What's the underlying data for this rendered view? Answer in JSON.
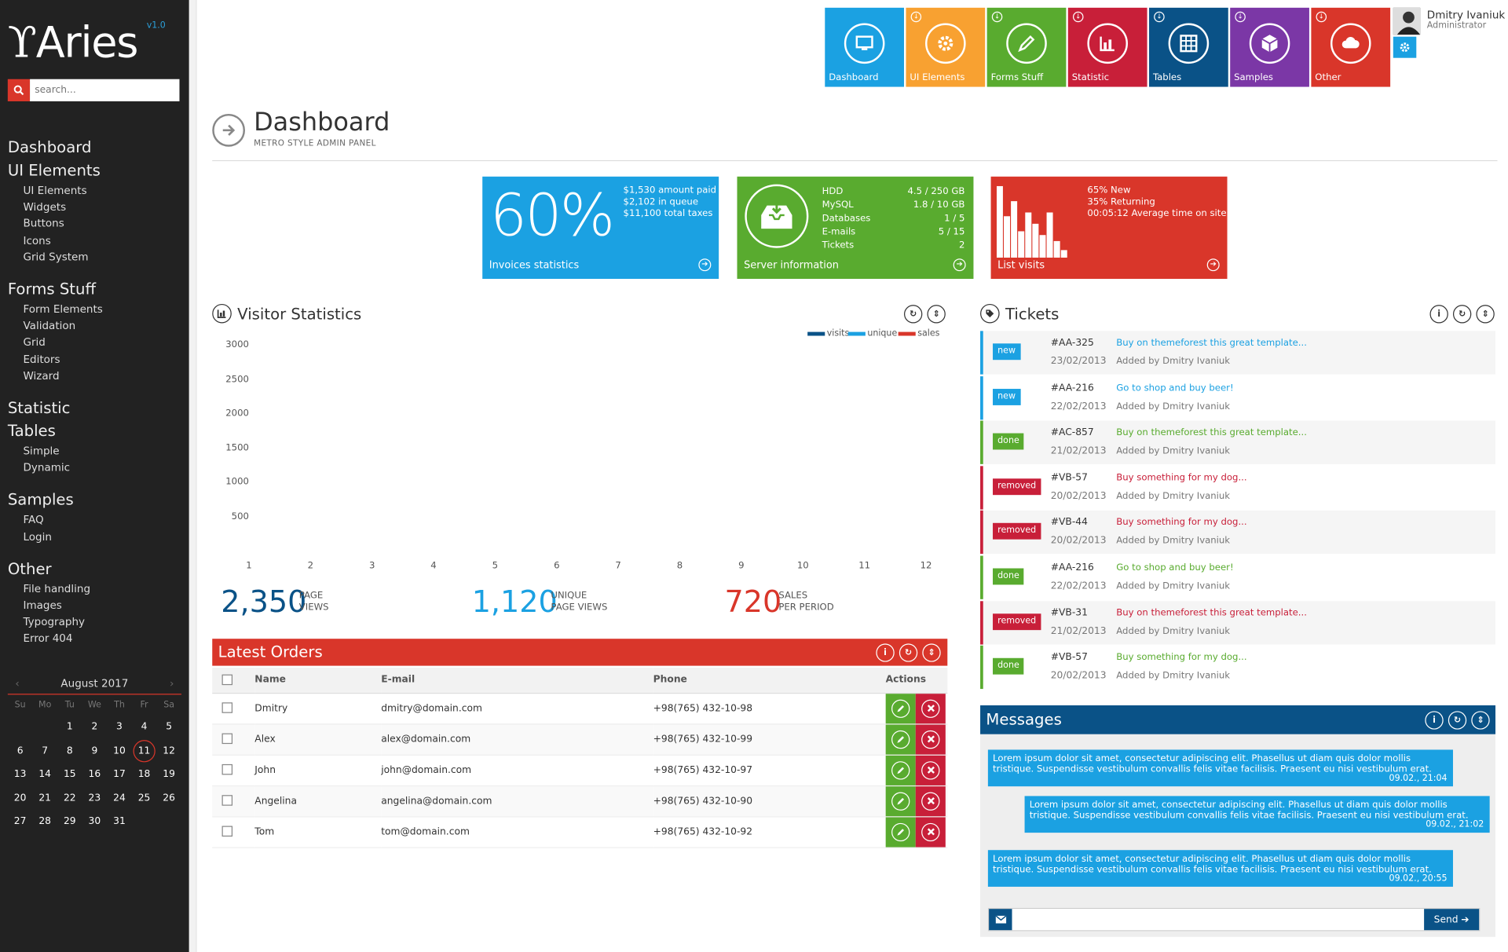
{
  "brand": {
    "logo": "Aries",
    "version": "v1.0"
  },
  "search": {
    "placeholder": "search..."
  },
  "sidebar": {
    "groups": [
      {
        "label": "Dashboard",
        "items": []
      },
      {
        "label": "UI Elements",
        "items": [
          "UI Elements",
          "Widgets",
          "Buttons",
          "Icons",
          "Grid System"
        ]
      },
      {
        "label": "Forms Stuff",
        "items": [
          "Form Elements",
          "Validation",
          "Grid",
          "Editors",
          "Wizard"
        ]
      },
      {
        "label": "Statistic",
        "items": []
      },
      {
        "label": "Tables",
        "items": [
          "Simple",
          "Dynamic"
        ]
      },
      {
        "label": "Samples",
        "items": [
          "FAQ",
          "Login"
        ]
      },
      {
        "label": "Other",
        "items": [
          "File handling",
          "Images",
          "Typography",
          "Error 404"
        ]
      }
    ]
  },
  "calendar": {
    "month": "August 2017",
    "prev": "‹",
    "next": "›",
    "dow": [
      "Su",
      "Mo",
      "Tu",
      "We",
      "Th",
      "Fr",
      "Sa"
    ],
    "start_offset": 2,
    "days": 31,
    "today": 11
  },
  "tiles": [
    {
      "label": "Dashboard",
      "color": "#1ba1e2",
      "icon": "monitor-icon",
      "arrow": false
    },
    {
      "label": "UI Elements",
      "color": "#f8a131",
      "icon": "gear-icon",
      "arrow": true
    },
    {
      "label": "Forms Stuff",
      "color": "#59ab2f",
      "icon": "pen-icon",
      "arrow": true
    },
    {
      "label": "Statistic",
      "color": "#c81f39",
      "icon": "chart-icon",
      "arrow": true
    },
    {
      "label": "Tables",
      "color": "#0a5287",
      "icon": "table-icon",
      "arrow": true
    },
    {
      "label": "Samples",
      "color": "#7b37a6",
      "icon": "box-icon",
      "arrow": true
    },
    {
      "label": "Other",
      "color": "#d9362a",
      "icon": "cloud-icon",
      "arrow": true
    }
  ],
  "user": {
    "name": "Dmitry Ivaniuk",
    "role": "Administrator"
  },
  "page": {
    "title": "Dashboard",
    "subtitle": "METRO STYLE ADMIN PANEL"
  },
  "cards": {
    "invoices": {
      "big": "60%",
      "lines": [
        "$1,530 amount paid",
        "$2,102 in queue",
        "$11,100 total taxes"
      ],
      "label": "Invoices statistics",
      "color": "#1ba1e2"
    },
    "server": {
      "rows": [
        [
          "HDD",
          "4.5 / 250 GB"
        ],
        [
          "MySQL",
          "1.8 / 10 GB"
        ],
        [
          "Databases",
          "1 / 5"
        ],
        [
          "E-mails",
          "5 / 15"
        ],
        [
          "Tickets",
          "2"
        ]
      ],
      "label": "Server information",
      "color": "#59ab2f"
    },
    "visits": {
      "lines": [
        "65% New",
        "35% Returning",
        "00:05:12 Average time on site"
      ],
      "label": "List visits",
      "color": "#d9362a",
      "bars": [
        0.95,
        0.55,
        0.75,
        0.35,
        0.6,
        0.45,
        0.3,
        0.6,
        0.22,
        0.1
      ]
    }
  },
  "visitor_stats": {
    "title": "Visitor Statistics",
    "legend": [
      {
        "name": "visits",
        "color": "#0a5287"
      },
      {
        "name": "unique",
        "color": "#1ba1e2"
      },
      {
        "name": "sales",
        "color": "#d9362a"
      }
    ],
    "y_ticks": [
      "3000",
      "2500",
      "2000",
      "1500",
      "1000",
      "500"
    ],
    "x_ticks": [
      "1",
      "2",
      "3",
      "4",
      "5",
      "6",
      "7",
      "8",
      "9",
      "10",
      "11",
      "12"
    ],
    "summary": [
      {
        "value": "2,350",
        "label1": "PAGE",
        "label2": "VIEWS",
        "color": "#0a5287"
      },
      {
        "value": "1,120",
        "label1": "UNIQUE",
        "label2": "PAGE VIEWS",
        "color": "#1ba1e2"
      },
      {
        "value": "720",
        "label1": "SALES",
        "label2": "PER PERIOD",
        "color": "#d9362a"
      }
    ]
  },
  "orders": {
    "title": "Latest Orders",
    "columns": [
      "Name",
      "E-mail",
      "Phone",
      "Actions"
    ],
    "rows": [
      {
        "name": "Dmitry",
        "email": "dmitry@domain.com",
        "phone": "+98(765) 432-10-98"
      },
      {
        "name": "Alex",
        "email": "alex@domain.com",
        "phone": "+98(765) 432-10-99"
      },
      {
        "name": "John",
        "email": "john@domain.com",
        "phone": "+98(765) 432-10-97"
      },
      {
        "name": "Angelina",
        "email": "angelina@domain.com",
        "phone": "+98(765) 432-10-90"
      },
      {
        "name": "Tom",
        "email": "tom@domain.com",
        "phone": "+98(765) 432-10-92"
      }
    ]
  },
  "tickets": {
    "title": "Tickets",
    "items": [
      {
        "status": "new",
        "color": "#1ba1e2",
        "id": "#AA-325",
        "date": "23/02/2013",
        "title": "Buy on themeforest this great template...",
        "by": "Added by Dmitry Ivaniuk"
      },
      {
        "status": "new",
        "color": "#1ba1e2",
        "id": "#AA-216",
        "date": "22/02/2013",
        "title": "Go to shop and buy beer!",
        "by": "Added by Dmitry Ivaniuk"
      },
      {
        "status": "done",
        "color": "#59ab2f",
        "id": "#AC-857",
        "date": "21/02/2013",
        "title": "Buy on themeforest this great template...",
        "by": "Added by Dmitry Ivaniuk"
      },
      {
        "status": "removed",
        "color": "#c81f39",
        "id": "#VB-57",
        "date": "20/02/2013",
        "title": "Buy something for my dog...",
        "by": "Added by Dmitry Ivaniuk"
      },
      {
        "status": "removed",
        "color": "#c81f39",
        "id": "#VB-44",
        "date": "20/02/2013",
        "title": "Buy something for my dog...",
        "by": "Added by Dmitry Ivaniuk"
      },
      {
        "status": "done",
        "color": "#59ab2f",
        "id": "#AA-216",
        "date": "22/02/2013",
        "title": "Go to shop and buy beer!",
        "by": "Added by Dmitry Ivaniuk"
      },
      {
        "status": "removed",
        "color": "#c81f39",
        "id": "#VB-31",
        "date": "21/02/2013",
        "title": "Buy on themeforest this great template...",
        "by": "Added by Dmitry Ivaniuk"
      },
      {
        "status": "done",
        "color": "#59ab2f",
        "id": "#VB-57",
        "date": "20/02/2013",
        "title": "Buy something for my dog...",
        "by": "Added by Dmitry Ivaniuk"
      }
    ]
  },
  "messages": {
    "title": "Messages",
    "items": [
      {
        "text": "Lorem ipsum dolor sit amet, consectetur adipiscing elit. Phasellus ut diam quis dolor mollis tristique. Suspendisse vestibulum convallis felis vitae facilisis. Praesent eu nisi vestibulum erat.",
        "time": "09.02., 21:04",
        "side": "left"
      },
      {
        "text": "Lorem ipsum dolor sit amet, consectetur adipiscing elit. Phasellus ut diam quis dolor mollis tristique. Suspendisse vestibulum convallis felis vitae facilisis. Praesent eu nisi vestibulum erat.",
        "time": "09.02., 21:02",
        "side": "right"
      },
      {
        "text": "Lorem ipsum dolor sit amet, consectetur adipiscing elit. Phasellus ut diam quis dolor mollis tristique. Suspendisse vestibulum convallis felis vitae facilisis. Praesent eu nisi vestibulum erat.",
        "time": "09.02., 20:55",
        "side": "left"
      }
    ],
    "input_placeholder": "",
    "send_label": "Send"
  },
  "tools": {
    "info": "i"
  }
}
